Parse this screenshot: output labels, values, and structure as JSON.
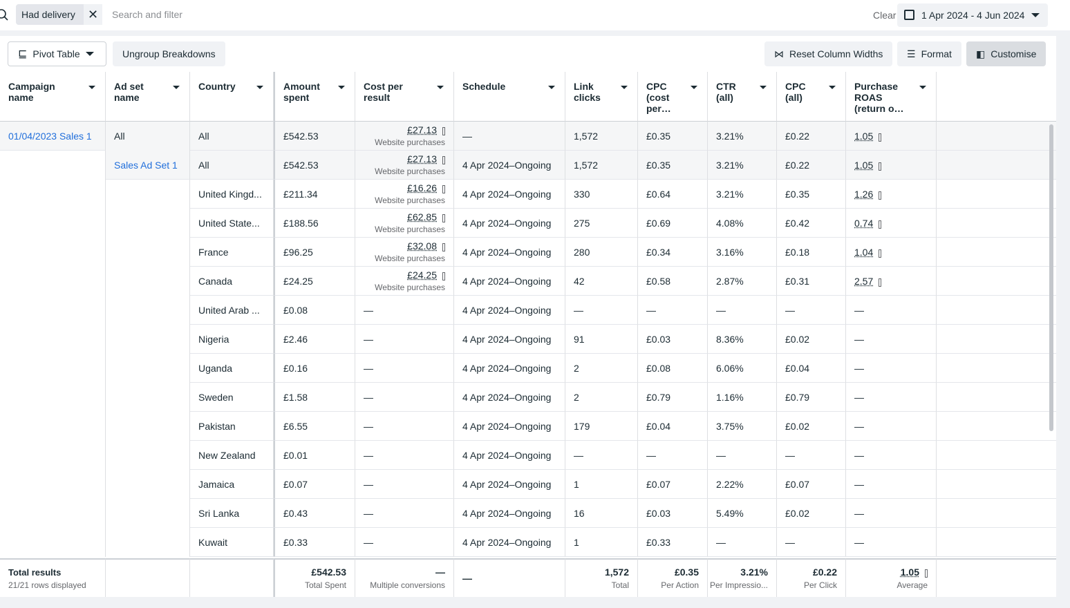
{
  "filter": {
    "chip": "Had delivery",
    "placeholder": "Search and filter",
    "clear": "Clear",
    "date_range": "1 Apr 2024 - 4 Jun 2024"
  },
  "toolbar": {
    "pivot": "Pivot Table",
    "ungroup": "Ungroup Breakdowns",
    "reset": "Reset Column Widths",
    "format": "Format",
    "customise": "Customise"
  },
  "table": {
    "columns": [
      {
        "key": "campaign",
        "label": "Campaign name"
      },
      {
        "key": "adset",
        "label": "Ad set name"
      },
      {
        "key": "country",
        "label": "Country"
      },
      {
        "key": "amount",
        "label": "Amount spent"
      },
      {
        "key": "cost",
        "label": "Cost per result"
      },
      {
        "key": "schedule",
        "label": "Schedule"
      },
      {
        "key": "clicks",
        "label": "Link clicks"
      },
      {
        "key": "cpc",
        "label": "CPC (cost per…"
      },
      {
        "key": "ctr",
        "label": "CTR (all)"
      },
      {
        "key": "cpc_all",
        "label": "CPC (all)"
      },
      {
        "key": "roas",
        "label": "Purchase ROAS (return o…"
      }
    ],
    "rows": [
      {
        "campaign": "01/04/2023 Sales 1",
        "adset": "All",
        "country": "All",
        "amount": "£542.53",
        "cost": {
          "value": "£27.13",
          "sub": "Website purchases"
        },
        "schedule": "—",
        "clicks": "1,572",
        "cpc": "£0.35",
        "ctr": "3.21%",
        "cpc_all": "£0.22",
        "roas": "1.05"
      },
      {
        "adset": "Sales Ad Set 1",
        "country": "All",
        "amount": "£542.53",
        "cost": {
          "value": "£27.13",
          "sub": "Website purchases"
        },
        "schedule": "4 Apr 2024–Ongoing",
        "clicks": "1,572",
        "cpc": "£0.35",
        "ctr": "3.21%",
        "cpc_all": "£0.22",
        "roas": "1.05"
      },
      {
        "country": "United Kingd...",
        "amount": "£211.34",
        "cost": {
          "value": "£16.26",
          "sub": "Website purchases"
        },
        "schedule": "4 Apr 2024–Ongoing",
        "clicks": "330",
        "cpc": "£0.64",
        "ctr": "3.21%",
        "cpc_all": "£0.35",
        "roas": "1.26"
      },
      {
        "country": "United State...",
        "amount": "£188.56",
        "cost": {
          "value": "£62.85",
          "sub": "Website purchases"
        },
        "schedule": "4 Apr 2024–Ongoing",
        "clicks": "275",
        "cpc": "£0.69",
        "ctr": "4.08%",
        "cpc_all": "£0.42",
        "roas": "0.74"
      },
      {
        "country": "France",
        "amount": "£96.25",
        "cost": {
          "value": "£32.08",
          "sub": "Website purchases"
        },
        "schedule": "4 Apr 2024–Ongoing",
        "clicks": "280",
        "cpc": "£0.34",
        "ctr": "3.16%",
        "cpc_all": "£0.18",
        "roas": "1.04"
      },
      {
        "country": "Canada",
        "amount": "£24.25",
        "cost": {
          "value": "£24.25",
          "sub": "Website purchases"
        },
        "schedule": "4 Apr 2024–Ongoing",
        "clicks": "42",
        "cpc": "£0.58",
        "ctr": "2.87%",
        "cpc_all": "£0.31",
        "roas": "2.57"
      },
      {
        "country": "United Arab ...",
        "amount": "£0.08",
        "cost": "—",
        "schedule": "4 Apr 2024–Ongoing",
        "clicks": "—",
        "cpc": "—",
        "ctr": "—",
        "cpc_all": "—",
        "roas": "—"
      },
      {
        "country": "Nigeria",
        "amount": "£2.46",
        "cost": "—",
        "schedule": "4 Apr 2024–Ongoing",
        "clicks": "91",
        "cpc": "£0.03",
        "ctr": "8.36%",
        "cpc_all": "£0.02",
        "roas": "—"
      },
      {
        "country": "Uganda",
        "amount": "£0.16",
        "cost": "—",
        "schedule": "4 Apr 2024–Ongoing",
        "clicks": "2",
        "cpc": "£0.08",
        "ctr": "6.06%",
        "cpc_all": "£0.04",
        "roas": "—"
      },
      {
        "country": "Sweden",
        "amount": "£1.58",
        "cost": "—",
        "schedule": "4 Apr 2024–Ongoing",
        "clicks": "2",
        "cpc": "£0.79",
        "ctr": "1.16%",
        "cpc_all": "£0.79",
        "roas": "—"
      },
      {
        "country": "Pakistan",
        "amount": "£6.55",
        "cost": "—",
        "schedule": "4 Apr 2024–Ongoing",
        "clicks": "179",
        "cpc": "£0.04",
        "ctr": "3.75%",
        "cpc_all": "£0.02",
        "roas": "—"
      },
      {
        "country": "New Zealand",
        "amount": "£0.01",
        "cost": "—",
        "schedule": "4 Apr 2024–Ongoing",
        "clicks": "—",
        "cpc": "—",
        "ctr": "—",
        "cpc_all": "—",
        "roas": "—"
      },
      {
        "country": "Jamaica",
        "amount": "£0.07",
        "cost": "—",
        "schedule": "4 Apr 2024–Ongoing",
        "clicks": "1",
        "cpc": "£0.07",
        "ctr": "2.22%",
        "cpc_all": "£0.07",
        "roas": "—"
      },
      {
        "country": "Sri Lanka",
        "amount": "£0.43",
        "cost": "—",
        "schedule": "4 Apr 2024–Ongoing",
        "clicks": "16",
        "cpc": "£0.03",
        "ctr": "5.49%",
        "cpc_all": "£0.02",
        "roas": "—"
      },
      {
        "country": "Kuwait",
        "amount": "£0.33",
        "cost": "—",
        "schedule": "4 Apr 2024–Ongoing",
        "clicks": "1",
        "cpc": "£0.33",
        "ctr": "—",
        "cpc_all": "—",
        "roas": "—"
      }
    ],
    "total": {
      "label": "Total results",
      "sub": "21/21 rows displayed",
      "cells": {
        "amount": {
          "value": "£542.53",
          "sub": "Total Spent"
        },
        "cost": {
          "value": "—",
          "sub": "Multiple conversions"
        },
        "schedule": {
          "value": "—"
        },
        "clicks": {
          "value": "1,572",
          "sub": "Total"
        },
        "cpc": {
          "value": "£0.35",
          "sub": "Per Action"
        },
        "ctr": {
          "value": "3.21%",
          "sub": "Per Impressio..."
        },
        "cpc_all": {
          "value": "£0.22",
          "sub": "Per Click"
        },
        "roas": {
          "value": "1.05",
          "sub": "Average"
        }
      }
    }
  }
}
